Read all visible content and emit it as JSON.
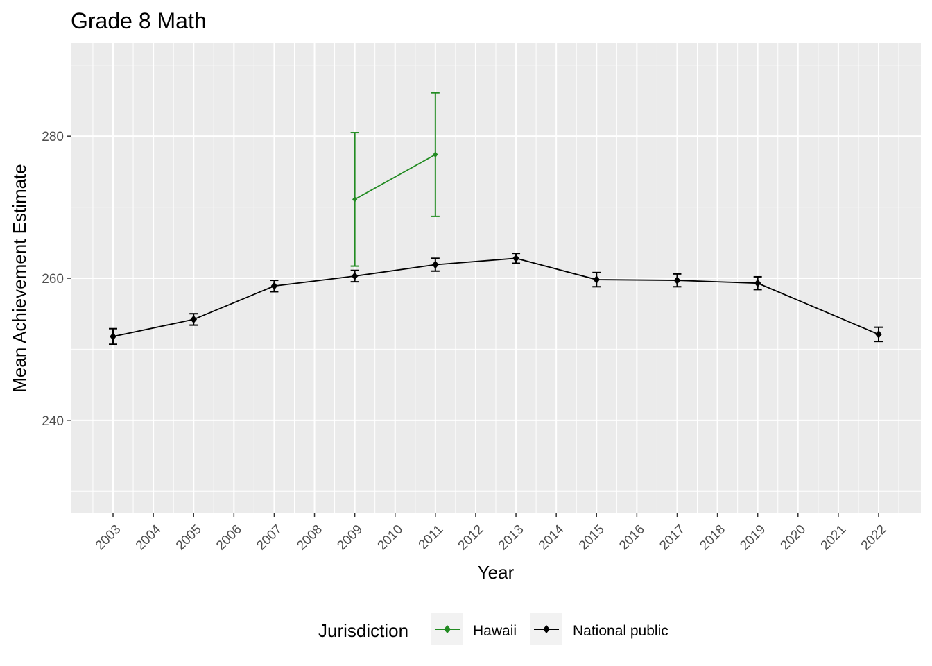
{
  "chart_data": {
    "type": "line",
    "title": "Grade 8 Math",
    "xlabel": "Year",
    "ylabel": "Mean Achievement Estimate",
    "xlim": [
      2001.95,
      2023.05
    ],
    "ylim": [
      226.9,
      293.1
    ],
    "x_ticks": [
      2003,
      2004,
      2005,
      2006,
      2007,
      2008,
      2009,
      2010,
      2011,
      2012,
      2013,
      2014,
      2015,
      2016,
      2017,
      2018,
      2019,
      2020,
      2021,
      2022
    ],
    "y_ticks": [
      240,
      260,
      280
    ],
    "grid": true,
    "legend": {
      "title": "Jurisdiction",
      "position": "bottom"
    },
    "series": [
      {
        "name": "Hawaii",
        "color": "#228B22",
        "x": [
          2009,
          2011
        ],
        "y": [
          271.1,
          277.4
        ],
        "error": [
          9.4,
          8.7
        ]
      },
      {
        "name": "National public",
        "color": "#000000",
        "x": [
          2003,
          2005,
          2007,
          2009,
          2011,
          2013,
          2015,
          2017,
          2019,
          2022
        ],
        "y": [
          251.8,
          254.2,
          258.9,
          260.3,
          261.9,
          262.8,
          259.8,
          259.7,
          259.3,
          252.1
        ],
        "error": [
          1.1,
          0.8,
          0.8,
          0.8,
          0.9,
          0.7,
          1.0,
          0.9,
          0.9,
          1.0
        ]
      }
    ]
  }
}
